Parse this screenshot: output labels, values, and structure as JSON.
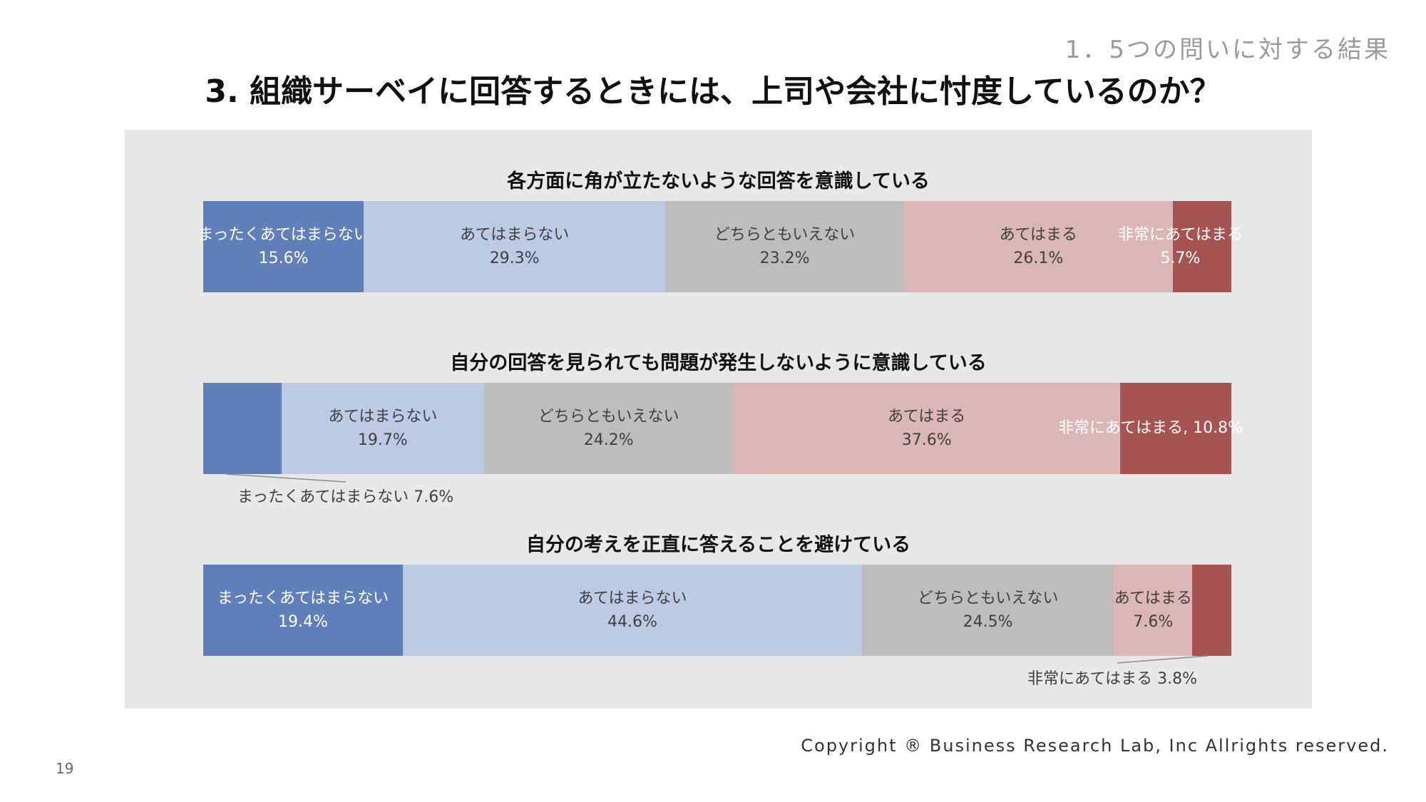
{
  "header": {
    "section_label": "1．5つの問いに対する結果",
    "title": "3. 組織サーベイに回答するときには、上司や会社に忖度しているのか？"
  },
  "colors": {
    "まったくあてはまらない": "#6180b9",
    "あてはまらない": "#bccbe3",
    "どちらともいえない": "#bdbdbd",
    "あてはまる": "#dbb6b6",
    "非常にあてはまる": "#a65353",
    "panel_background": "#e8e8e8"
  },
  "chart_data": [
    {
      "type": "bar",
      "orientation": "horizontal-stacked-100",
      "title": "各方面に角が立たないような回答を意識している",
      "categories": [
        "まったくあてはまらない",
        "あてはまらない",
        "どちらともいえない",
        "あてはまる",
        "非常にあてはまる"
      ],
      "values": [
        15.6,
        29.3,
        23.2,
        26.1,
        5.7
      ],
      "labels": [
        {
          "name": "まったくあてはまらない",
          "value": "15.6%"
        },
        {
          "name": "あてはまらない",
          "value": "29.3%"
        },
        {
          "name": "どちらともいえない",
          "value": "23.2%"
        },
        {
          "name": "あてはまる",
          "value": "26.1%"
        },
        {
          "name": "非常にあてはまる",
          "value": "5.7%"
        }
      ]
    },
    {
      "type": "bar",
      "orientation": "horizontal-stacked-100",
      "title": "自分の回答を見られても問題が発生しないように意識している",
      "categories": [
        "まったくあてはまらない",
        "あてはまらない",
        "どちらともいえない",
        "あてはまる",
        "非常にあてはまる"
      ],
      "values": [
        7.6,
        19.7,
        24.2,
        37.6,
        10.8
      ],
      "labels": [
        {
          "name": "まったくあてはまらない",
          "value": "7.6%",
          "callout": "まったくあてはまらない 7.6%"
        },
        {
          "name": "あてはまらない",
          "value": "19.7%"
        },
        {
          "name": "どちらともいえない",
          "value": "24.2%"
        },
        {
          "name": "あてはまる",
          "value": "37.6%"
        },
        {
          "name": "非常にあてはまる",
          "value": "10.8%",
          "inline": "非常にあてはまる, 10.8%"
        }
      ]
    },
    {
      "type": "bar",
      "orientation": "horizontal-stacked-100",
      "title": "自分の考えを正直に答えることを避けている",
      "categories": [
        "まったくあてはまらない",
        "あてはまらない",
        "どちらともいえない",
        "あてはまる",
        "非常にあてはまる"
      ],
      "values": [
        19.4,
        44.6,
        24.5,
        7.6,
        3.8
      ],
      "labels": [
        {
          "name": "まったくあてはまらない",
          "value": "19.4%"
        },
        {
          "name": "あてはまらない",
          "value": "44.6%"
        },
        {
          "name": "どちらともいえない",
          "value": "24.5%"
        },
        {
          "name": "あてはまる",
          "value": "7.6%"
        },
        {
          "name": "非常にあてはまる",
          "value": "3.8%",
          "callout": "非常にあてはまる 3.8%"
        }
      ]
    }
  ],
  "footer": {
    "copyright": "Copyright ® Business Research Lab, Inc Allrights reserved.",
    "page_number": "19"
  }
}
